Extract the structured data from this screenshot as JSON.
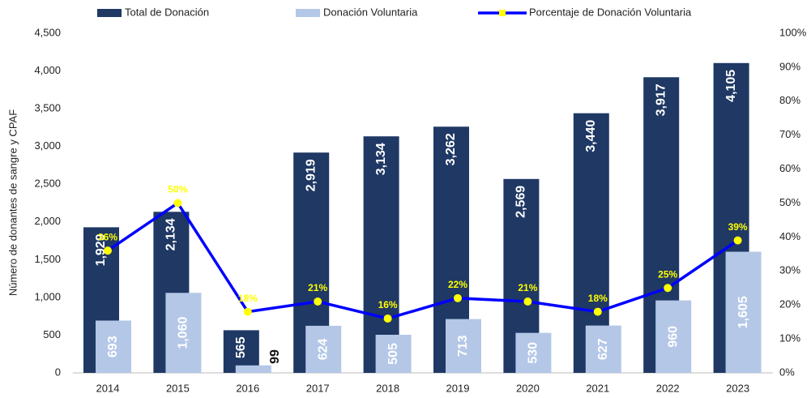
{
  "chart_data": {
    "type": "bar",
    "y_label": "Número de donantes de sangre y CPAF",
    "categories": [
      "2014",
      "2015",
      "2016",
      "2017",
      "2018",
      "2019",
      "2020",
      "2021",
      "2022",
      "2023"
    ],
    "series": [
      {
        "name": "Total de Donación",
        "color": "#1f3864",
        "values": [
          1929,
          2134,
          565,
          2919,
          3134,
          3262,
          2569,
          3440,
          3917,
          4105
        ],
        "value_labels": [
          "1,929",
          "2,134",
          "565",
          "2,919",
          "3,134",
          "3,262",
          "2,569",
          "3,440",
          "3,917",
          "4,105"
        ]
      },
      {
        "name": "Donación Voluntaria",
        "color": "#b4c7e7",
        "values": [
          693,
          1060,
          99,
          624,
          505,
          713,
          530,
          627,
          960,
          1605
        ],
        "value_labels": [
          "693",
          "1,060",
          "99",
          "624",
          "505",
          "713",
          "530",
          "627",
          "960",
          "1,605"
        ]
      },
      {
        "name": "Porcentaje de Donación Voluntaria",
        "type": "line",
        "axis": "y2",
        "color": "#0000ff",
        "marker_color": "#ffff00",
        "values": [
          36,
          50,
          18,
          21,
          16,
          22,
          21,
          18,
          25,
          39
        ],
        "value_labels": [
          "36%",
          "50%",
          "18%",
          "21%",
          "16%",
          "22%",
          "21%",
          "18%",
          "25%",
          "39%"
        ]
      }
    ],
    "ylim": [
      0,
      4500
    ],
    "yticks": [
      0,
      500,
      {
        "value": 1000,
        "label": "1,000"
      },
      {
        "value": 1500,
        "label": "1,500"
      },
      {
        "value": 2000,
        "label": "2,000"
      },
      {
        "value": 2500,
        "label": "2,500"
      },
      {
        "value": 3000,
        "label": "3,000"
      },
      {
        "value": 3500,
        "label": "3,500"
      },
      {
        "value": 4000,
        "label": "4,000"
      },
      {
        "value": 4500,
        "label": "4,500"
      }
    ],
    "y2lim": [
      0,
      100
    ],
    "y2ticks": [
      {
        "value": 0,
        "label": "0%"
      },
      {
        "value": 10,
        "label": "10%"
      },
      {
        "value": 20,
        "label": "20%"
      },
      {
        "value": 30,
        "label": "30%"
      },
      {
        "value": 40,
        "label": "40%"
      },
      {
        "value": 50,
        "label": "50%"
      },
      {
        "value": 60,
        "label": "60%"
      },
      {
        "value": 70,
        "label": "70%"
      },
      {
        "value": 80,
        "label": "80%"
      },
      {
        "value": 90,
        "label": "90%"
      },
      {
        "value": 100,
        "label": "100%"
      }
    ],
    "grid": false
  }
}
